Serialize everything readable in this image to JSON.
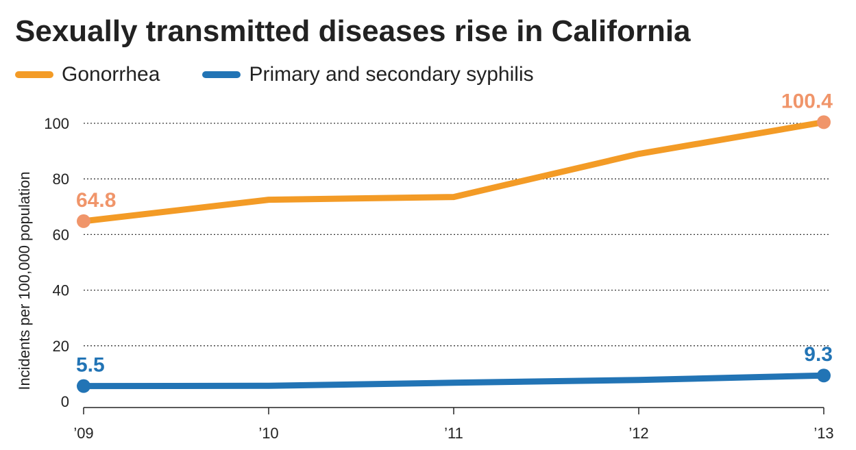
{
  "chart_data": {
    "type": "line",
    "title": "Sexually transmitted diseases rise in California",
    "ylabel": "Incidents per 100,000 population",
    "xlabel": "",
    "categories": [
      "'09",
      "'10",
      "'11",
      "'12",
      "'13"
    ],
    "x_tick_labels": [
      "’09",
      "’10",
      "’11",
      "’12",
      "’13"
    ],
    "y_ticks": [
      0,
      20,
      40,
      60,
      80,
      100
    ],
    "y_tick_labels": [
      "0",
      "20",
      "40",
      "60",
      "80",
      "100"
    ],
    "ylim": [
      0,
      100
    ],
    "grid": "horizontal dotted",
    "legend": "top-left",
    "series": [
      {
        "name": "Gonorrhea",
        "color": "#F39B26",
        "label_color": "#F0956A",
        "values": [
          64.8,
          72.5,
          73.5,
          89.0,
          100.4
        ],
        "data_labels": [
          {
            "index": 0,
            "text": "64.8"
          },
          {
            "index": 4,
            "text": "100.4"
          }
        ]
      },
      {
        "name": "Primary and secondary syphilis",
        "color": "#2274B5",
        "label_color": "#2274B5",
        "values": [
          5.5,
          5.6,
          6.7,
          7.7,
          9.3
        ],
        "data_labels": [
          {
            "index": 0,
            "text": "5.5"
          },
          {
            "index": 4,
            "text": "9.3"
          }
        ]
      }
    ]
  }
}
